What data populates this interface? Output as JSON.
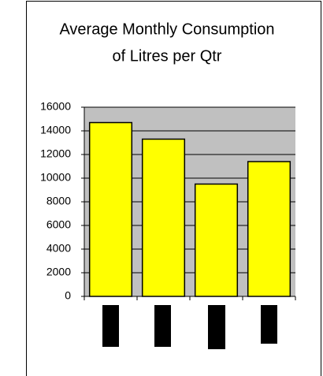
{
  "chart_data": {
    "type": "bar",
    "title": [
      "Average Monthly Consumption",
      "of Litres per Qtr"
    ],
    "categories": [
      null,
      null,
      null,
      null
    ],
    "values": [
      14700,
      13300,
      9500,
      11400
    ],
    "color": "#ffff00",
    "ylim": [
      0,
      16000
    ],
    "yticks": [
      0,
      2000,
      4000,
      6000,
      8000,
      10000,
      12000,
      14000,
      16000
    ],
    "grid": true
  }
}
